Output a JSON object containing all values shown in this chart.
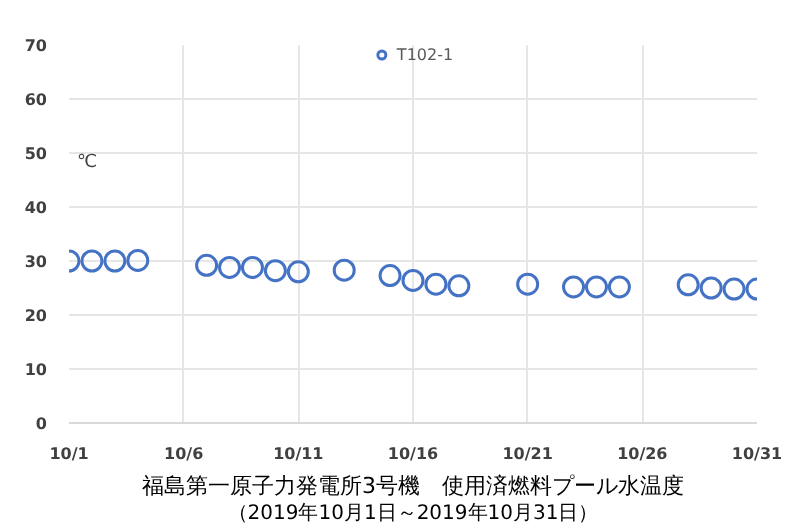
{
  "chart_data": {
    "type": "scatter",
    "title": "福島第一原子力発電所3号機　使用済燃料プール水温度",
    "subtitle": "（2019年10月1日～2019年10月31日）",
    "ylabel": "℃",
    "x": [
      "2019-10-01",
      "2019-10-02",
      "2019-10-03",
      "2019-10-04",
      "2019-10-07",
      "2019-10-08",
      "2019-10-09",
      "2019-10-10",
      "2019-10-11",
      "2019-10-13",
      "2019-10-15",
      "2019-10-16",
      "2019-10-17",
      "2019-10-18",
      "2019-10-21",
      "2019-10-23",
      "2019-10-24",
      "2019-10-25",
      "2019-10-28",
      "2019-10-29",
      "2019-10-30",
      "2019-10-31"
    ],
    "series": [
      {
        "name": "T102-1",
        "color": "#4472c4",
        "values": [
          30.0,
          30.0,
          30.0,
          30.1,
          29.2,
          28.8,
          28.8,
          28.2,
          28.0,
          28.3,
          27.3,
          26.4,
          25.7,
          25.4,
          25.7,
          25.2,
          25.2,
          25.2,
          25.6,
          25.0,
          24.8,
          24.8
        ]
      }
    ],
    "xlim": [
      "2019-10-01",
      "2019-10-31"
    ],
    "xticks": [
      {
        "value": "2019-10-01",
        "label": "10/1"
      },
      {
        "value": "2019-10-06",
        "label": "10/6"
      },
      {
        "value": "2019-10-11",
        "label": "10/11"
      },
      {
        "value": "2019-10-16",
        "label": "10/16"
      },
      {
        "value": "2019-10-21",
        "label": "10/21"
      },
      {
        "value": "2019-10-26",
        "label": "10/26"
      },
      {
        "value": "2019-10-31",
        "label": "10/31"
      }
    ],
    "ylim": [
      0,
      70
    ],
    "yticks": [
      0,
      10,
      20,
      30,
      40,
      50,
      60,
      70
    ],
    "grid": true,
    "legend": "top",
    "marker": "circle"
  }
}
